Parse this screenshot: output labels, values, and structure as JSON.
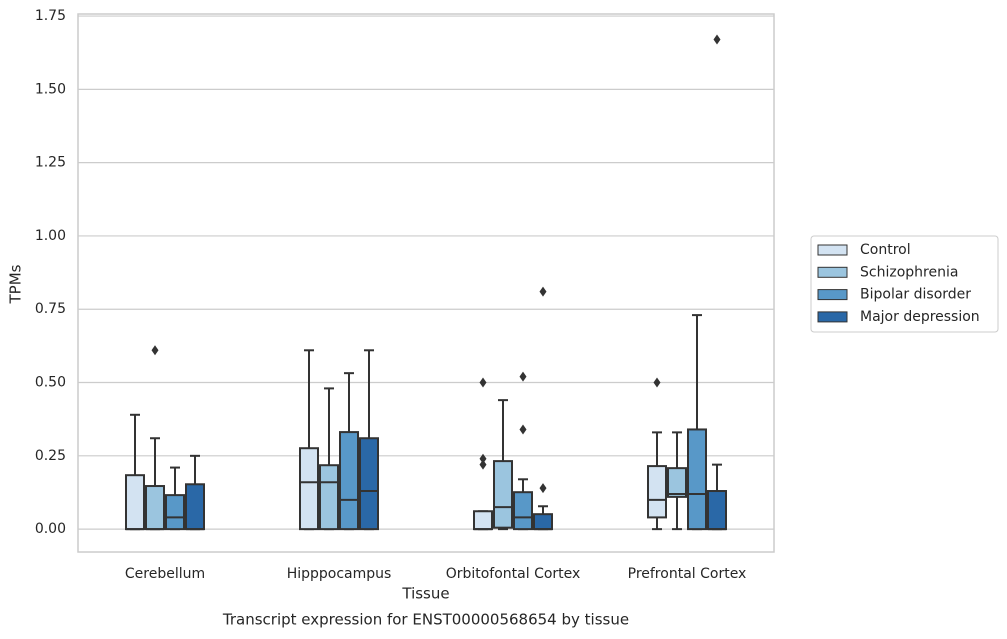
{
  "chart_data": {
    "type": "box",
    "title": "Transcript expression for ENST00000568654 by tissue",
    "x_label": "Tissue",
    "y_label": "TPMs",
    "categories": [
      "Cerebellum",
      "Hipppocampus",
      "Orbitofontal Cortex",
      "Prefrontal Cortex"
    ],
    "ylim": [
      -0.078,
      1.757
    ],
    "yticks": [
      {
        "value": 0,
        "label": "0.00"
      },
      {
        "value": 0.25,
        "label": "0.25"
      },
      {
        "value": 0.5,
        "label": "0.50"
      },
      {
        "value": 0.75,
        "label": "0.75"
      },
      {
        "value": 1.0,
        "label": "1.00"
      },
      {
        "value": 1.25,
        "label": "1.25"
      },
      {
        "value": 1.5,
        "label": "1.50"
      },
      {
        "value": 1.75,
        "label": "1.75"
      }
    ],
    "grid": true,
    "legend": "right",
    "series": [
      {
        "name": "Control",
        "color": "#d3e3f2",
        "boxes": [
          {
            "min": 0,
            "q1": 0,
            "median": 0,
            "q3": 0.184,
            "max": 0.39,
            "outliers": []
          },
          {
            "min": 0,
            "q1": 0,
            "median": 0.16,
            "q3": 0.276,
            "max": 0.61,
            "outliers": []
          },
          {
            "min": 0,
            "q1": 0,
            "median": 0,
            "q3": 0.061,
            "max": 0.061,
            "outliers": [
              0.5,
              0.24,
              0.22
            ]
          },
          {
            "min": 0,
            "q1": 0.04,
            "median": 0.1,
            "q3": 0.215,
            "max": 0.33,
            "outliers": [
              0.5
            ]
          }
        ]
      },
      {
        "name": "Schizophrenia",
        "color": "#9bc5df",
        "boxes": [
          {
            "min": 0,
            "q1": 0,
            "median": 0,
            "q3": 0.147,
            "max": 0.31,
            "outliers": [
              0.61
            ]
          },
          {
            "min": 0,
            "q1": 0,
            "median": 0.16,
            "q3": 0.218,
            "max": 0.48,
            "outliers": []
          },
          {
            "min": 0,
            "q1": 0.005,
            "median": 0.075,
            "q3": 0.232,
            "max": 0.44,
            "outliers": []
          },
          {
            "min": 0,
            "q1": 0.11,
            "median": 0.12,
            "q3": 0.208,
            "max": 0.33,
            "outliers": []
          }
        ]
      },
      {
        "name": "Bipolar disorder",
        "color": "#5898c8",
        "boxes": [
          {
            "min": 0,
            "q1": 0,
            "median": 0.04,
            "q3": 0.116,
            "max": 0.21,
            "outliers": []
          },
          {
            "min": 0,
            "q1": 0,
            "median": 0.1,
            "q3": 0.331,
            "max": 0.532,
            "outliers": []
          },
          {
            "min": 0,
            "q1": 0,
            "median": 0.04,
            "q3": 0.126,
            "max": 0.17,
            "outliers": [
              0.52,
              0.34
            ]
          },
          {
            "min": 0,
            "q1": 0,
            "median": 0.12,
            "q3": 0.34,
            "max": 0.73,
            "outliers": []
          }
        ]
      },
      {
        "name": "Major depression",
        "color": "#2a68a7",
        "boxes": [
          {
            "min": 0,
            "q1": 0,
            "median": 0,
            "q3": 0.153,
            "max": 0.25,
            "outliers": []
          },
          {
            "min": 0,
            "q1": 0,
            "median": 0.13,
            "q3": 0.31,
            "max": 0.61,
            "outliers": []
          },
          {
            "min": 0,
            "q1": 0,
            "median": 0,
            "q3": 0.051,
            "max": 0.078,
            "outliers": [
              0.81,
              0.14
            ]
          },
          {
            "min": 0,
            "q1": 0,
            "median": 0,
            "q3": 0.13,
            "max": 0.22,
            "outliers": [
              1.67
            ]
          }
        ]
      }
    ]
  }
}
